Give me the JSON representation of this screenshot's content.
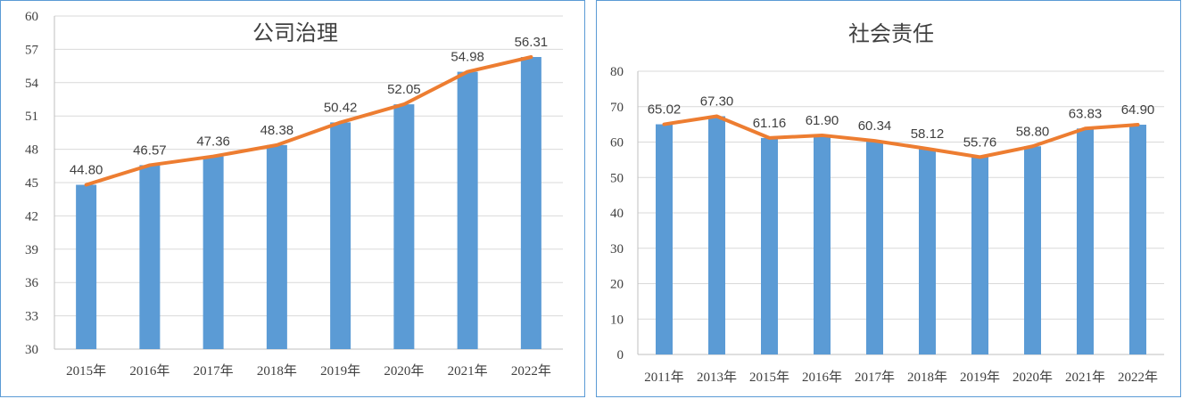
{
  "chart_data": [
    {
      "type": "bar",
      "title": "公司治理",
      "categories": [
        "2015年",
        "2016年",
        "2017年",
        "2018年",
        "2019年",
        "2020年",
        "2021年",
        "2022年"
      ],
      "series": [
        {
          "values": [
            44.8,
            46.57,
            47.36,
            48.38,
            50.42,
            52.05,
            54.98,
            56.31
          ]
        }
      ],
      "data_labels": [
        "44.80",
        "46.57",
        "47.36",
        "48.38",
        "50.42",
        "52.05",
        "54.98",
        "56.31"
      ],
      "overlay_line": true,
      "ylim": [
        30,
        60
      ],
      "yticks": [
        30,
        33,
        36,
        39,
        42,
        45,
        48,
        51,
        54,
        57,
        60
      ],
      "grid": true,
      "colors": {
        "bar": "#5b9bd5",
        "line": "#ed7d31"
      }
    },
    {
      "type": "bar",
      "title": "社会责任",
      "categories": [
        "2011年",
        "2013年",
        "2015年",
        "2016年",
        "2017年",
        "2018年",
        "2019年",
        "2020年",
        "2021年",
        "2022年"
      ],
      "series": [
        {
          "values": [
            65.02,
            67.3,
            61.16,
            61.9,
            60.34,
            58.12,
            55.76,
            58.8,
            63.83,
            64.9
          ]
        }
      ],
      "data_labels": [
        "65.02",
        "67.30",
        "61.16",
        "61.90",
        "60.34",
        "58.12",
        "55.76",
        "58.80",
        "63.83",
        "64.90"
      ],
      "overlay_line": true,
      "ylim": [
        0,
        80
      ],
      "yticks": [
        0,
        10,
        20,
        30,
        40,
        50,
        60,
        70,
        80
      ],
      "grid": true,
      "colors": {
        "bar": "#5b9bd5",
        "line": "#ed7d31"
      }
    }
  ]
}
